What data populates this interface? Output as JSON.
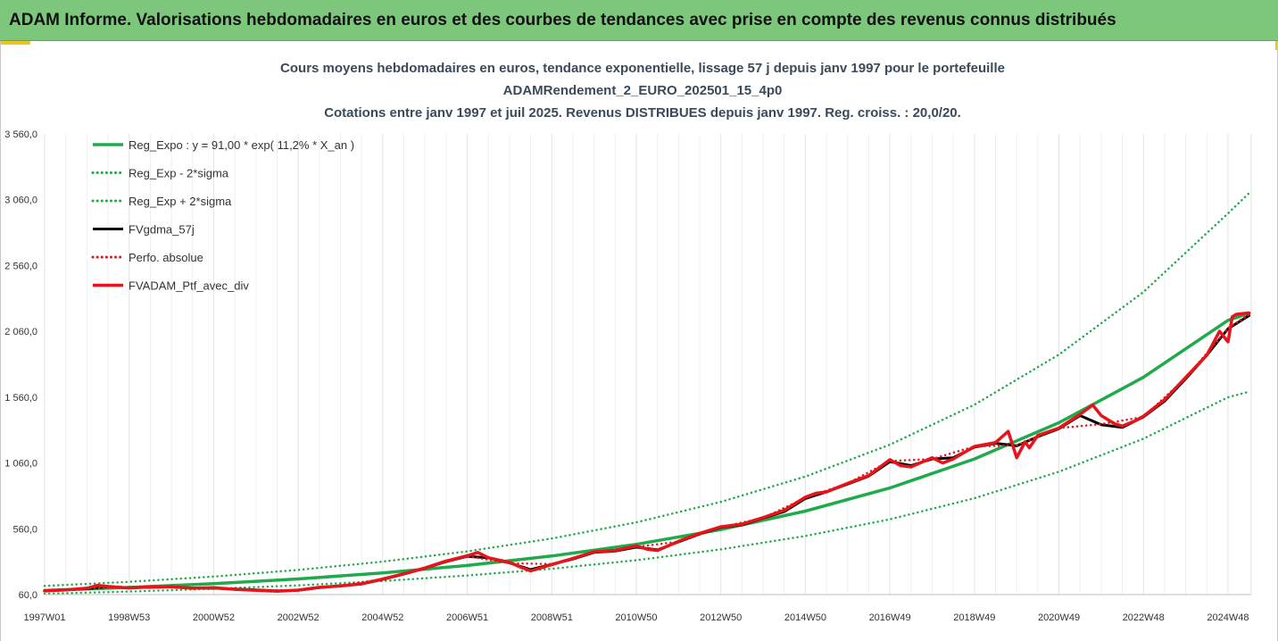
{
  "banner": {
    "title": "ADAM Informe. Valorisations hebdomadaires en euros et des courbes de tendances avec prise en compte des revenus connus distribués"
  },
  "colors": {
    "banner_bg": "#7cc77c",
    "accent": "#f0c419",
    "trend_green": "#1faa4b",
    "black_series": "#000000",
    "red_series": "#e8141b"
  },
  "chart_data": {
    "type": "line",
    "title_lines": [
      "Cours moyens hebdomadaires en euros, tendance exponentielle, lissage 57 j depuis janv 1997 pour le portefeuille",
      "ADAMRendement_2_EURO_202501_15_4p0",
      "Cotations entre janv 1997 et juil 2025. Revenus DISTRIBUES depuis janv 1997. Reg. croiss. : 20,0/20."
    ],
    "x_tick_labels": [
      "1997W01",
      "1998W53",
      "2000W52",
      "2002W52",
      "2004W52",
      "2006W51",
      "2008W51",
      "2010W50",
      "2012W50",
      "2014W50",
      "2016W49",
      "2018W49",
      "2020W49",
      "2022W48",
      "2024W48"
    ],
    "x_tick_years": [
      1997.0,
      1999.0,
      2001.0,
      2003.0,
      2005.0,
      2007.0,
      2009.0,
      2011.0,
      2013.0,
      2015.0,
      2017.0,
      2019.0,
      2021.0,
      2023.0,
      2025.0
    ],
    "xlim": [
      1997.0,
      2025.55
    ],
    "y_ticks": [
      60,
      560,
      1060,
      1560,
      2060,
      2560,
      3060,
      3560
    ],
    "y_tick_labels": [
      "60,0",
      "560,0",
      "1 060,0",
      "1 560,0",
      "2 060,0",
      "2 560,0",
      "3 060,0",
      "3 560,0"
    ],
    "ylim": [
      60,
      3560
    ],
    "grid": "vertical",
    "legend_placement": "top-left",
    "series": [
      {
        "name": "Reg_Expo : y = 91,00 * exp( 11,2% *  X_an )",
        "style": "solid",
        "color": "#1faa4b",
        "x": [
          1997,
          1999,
          2001,
          2003,
          2005,
          2007,
          2009,
          2011,
          2013,
          2015,
          2017,
          2019,
          2021,
          2023,
          2025,
          2025.5
        ],
        "y": [
          91,
          114,
          143,
          179,
          225,
          281,
          353,
          442,
          554,
          694,
          870,
          1090,
          1366,
          1711,
          2144,
          2198
        ]
      },
      {
        "name": "Reg_Exp - 2*sigma",
        "style": "dotted",
        "color": "#1faa4b",
        "x": [
          1997,
          1999,
          2001,
          2003,
          2005,
          2007,
          2009,
          2011,
          2013,
          2015,
          2017,
          2019,
          2021,
          2023,
          2025,
          2025.5
        ],
        "y": [
          66,
          83,
          104,
          130,
          163,
          205,
          256,
          321,
          403,
          505,
          632,
          792,
          993,
          1244,
          1559,
          1601
        ]
      },
      {
        "name": "Reg_Exp + 2*sigma",
        "style": "dotted",
        "color": "#1faa4b",
        "x": [
          1997,
          1999,
          2001,
          2003,
          2005,
          2007,
          2009,
          2011,
          2013,
          2015,
          2017,
          2019,
          2021,
          2023,
          2025,
          2025.5
        ],
        "y": [
          126,
          157,
          197,
          247,
          310,
          388,
          486,
          609,
          764,
          957,
          1199,
          1502,
          1883,
          2359,
          2956,
          3110
        ]
      },
      {
        "name": "FVgdma_57j",
        "style": "solid",
        "color": "#000000",
        "x": [
          1997,
          1997.5,
          1998,
          1998.5,
          1999,
          1999.5,
          2000,
          2000.5,
          2001,
          2001.5,
          2002,
          2002.5,
          2003,
          2003.5,
          2004,
          2004.5,
          2005,
          2005.5,
          2006,
          2006.5,
          2007,
          2007.5,
          2008,
          2008.5,
          2009,
          2009.5,
          2010,
          2010.5,
          2011,
          2011.5,
          2012,
          2012.5,
          2013,
          2013.5,
          2014,
          2014.5,
          2015,
          2015.5,
          2016,
          2016.5,
          2017,
          2017.5,
          2018,
          2018.5,
          2019,
          2019.5,
          2020,
          2020.5,
          2021,
          2021.5,
          2022,
          2022.5,
          2023,
          2023.5,
          2024,
          2024.5,
          2025,
          2025.5
        ],
        "y": [
          90,
          95,
          105,
          120,
          112,
          115,
          118,
          110,
          108,
          102,
          95,
          88,
          92,
          112,
          128,
          140,
          175,
          215,
          260,
          310,
          350,
          340,
          300,
          250,
          290,
          330,
          380,
          390,
          420,
          400,
          460,
          520,
          570,
          590,
          640,
          690,
          790,
          840,
          900,
          960,
          1070,
          1040,
          1090,
          1100,
          1180,
          1210,
          1190,
          1260,
          1320,
          1420,
          1350,
          1330,
          1410,
          1530,
          1700,
          1880,
          2080,
          2180
        ]
      },
      {
        "name": "Perfo. absolue",
        "style": "dotted",
        "color": "#e8141b",
        "x": [
          1997,
          1998,
          1999,
          2000,
          2001,
          2002,
          2003,
          2004,
          2005,
          2006,
          2007,
          2008,
          2009,
          2010,
          2011,
          2012,
          2013,
          2014,
          2015,
          2016,
          2017,
          2018,
          2019,
          2020,
          2021,
          2022,
          2023,
          2024,
          2025,
          2025.5
        ],
        "y": [
          90,
          108,
          115,
          118,
          108,
          92,
          94,
          130,
          178,
          262,
          352,
          298,
          292,
          382,
          422,
          462,
          572,
          642,
          795,
          905,
          1075,
          1090,
          1185,
          1195,
          1325,
          1355,
          1410,
          1705,
          2085,
          2190
        ]
      },
      {
        "name": "FVADAM_Ptf_avec_div",
        "style": "solid",
        "color": "#e8141b",
        "x": [
          1997,
          1997.5,
          1998,
          1998.25,
          1998.5,
          1999,
          1999.5,
          2000,
          2000.5,
          2001,
          2001.5,
          2002,
          2002.5,
          2003,
          2003.5,
          2004,
          2004.5,
          2005,
          2005.5,
          2006,
          2006.5,
          2007,
          2007.25,
          2007.5,
          2008,
          2008.25,
          2008.5,
          2009,
          2009.5,
          2010,
          2010.5,
          2011,
          2011.25,
          2011.5,
          2012,
          2012.5,
          2013,
          2013.5,
          2014,
          2014.5,
          2015,
          2015.25,
          2015.5,
          2016,
          2016.5,
          2017,
          2017.25,
          2017.5,
          2018,
          2018.25,
          2018.5,
          2019,
          2019.5,
          2019.8,
          2020,
          2020.2,
          2020.3,
          2020.5,
          2021,
          2021.5,
          2021.8,
          2022,
          2022.3,
          2022.5,
          2022.8,
          2023,
          2023.5,
          2024,
          2024.5,
          2024.8,
          2025,
          2025.1,
          2025.2,
          2025.5
        ],
        "y": [
          88,
          96,
          108,
          130,
          122,
          110,
          118,
          120,
          108,
          112,
          100,
          92,
          85,
          94,
          115,
          125,
          142,
          178,
          218,
          262,
          315,
          355,
          380,
          340,
          305,
          270,
          240,
          288,
          335,
          385,
          395,
          430,
          405,
          395,
          465,
          525,
          575,
          595,
          645,
          700,
          800,
          830,
          840,
          905,
          965,
          1085,
          1040,
          1030,
          1100,
          1060,
          1090,
          1185,
          1215,
          1300,
          1100,
          1220,
          1175,
          1270,
          1325,
          1430,
          1500,
          1420,
          1360,
          1340,
          1380,
          1415,
          1540,
          1710,
          1880,
          2060,
          1980,
          2170,
          2190,
          2200
        ]
      }
    ]
  }
}
